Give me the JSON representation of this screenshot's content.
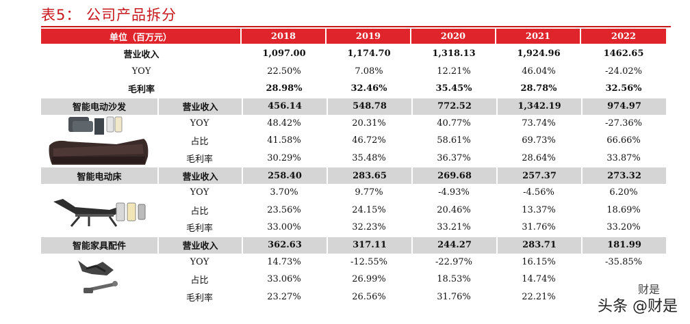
{
  "title": "表5： 公司产品拆分",
  "header": {
    "unit": "单位（百万元）",
    "years": [
      "2018",
      "2019",
      "2020",
      "2021",
      "2022"
    ]
  },
  "total": [
    {
      "label": "营业收入",
      "values": [
        "1,097.00",
        "1,174.70",
        "1,318.13",
        "1,924.96",
        "1462.65"
      ]
    },
    {
      "label": "YOY",
      "values": [
        "22.50%",
        "7.08%",
        "12.21%",
        "46.04%",
        "-24.02%"
      ]
    },
    {
      "label": "毛利率",
      "values": [
        "28.98%",
        "32.46%",
        "35.45%",
        "28.78%",
        "32.56%"
      ]
    }
  ],
  "segments": [
    {
      "name": "智能电动沙发",
      "revenue": {
        "label": "营业收入",
        "values": [
          "456.14",
          "548.78",
          "772.52",
          "1,342.19",
          "974.97"
        ]
      },
      "rows": [
        {
          "label": "YOY",
          "values": [
            "48.42%",
            "20.31%",
            "40.77%",
            "73.74%",
            "-27.36%"
          ]
        },
        {
          "label": "占比",
          "values": [
            "41.58%",
            "46.72%",
            "58.61%",
            "69.73%",
            "66.66%"
          ]
        },
        {
          "label": "毛利率",
          "values": [
            "30.29%",
            "35.48%",
            "36.37%",
            "28.64%",
            "33.87%"
          ]
        }
      ]
    },
    {
      "name": "智能电动床",
      "revenue": {
        "label": "营业收入",
        "values": [
          "258.40",
          "283.65",
          "269.68",
          "257.37",
          "273.32"
        ]
      },
      "rows": [
        {
          "label": "YOY",
          "values": [
            "3.70%",
            "9.77%",
            "-4.93%",
            "-4.56%",
            "6.20%"
          ]
        },
        {
          "label": "占比",
          "values": [
            "23.56%",
            "24.15%",
            "20.46%",
            "13.37%",
            "18.69%"
          ]
        },
        {
          "label": "毛利率",
          "values": [
            "33.00%",
            "32.23%",
            "33.21%",
            "31.76%",
            "33.20%"
          ]
        }
      ]
    },
    {
      "name": "智能家具配件",
      "revenue": {
        "label": "营业收入",
        "values": [
          "362.63",
          "317.11",
          "244.27",
          "283.71",
          "181.99"
        ]
      },
      "rows": [
        {
          "label": "YOY",
          "values": [
            "14.73%",
            "-12.55%",
            "-22.97%",
            "16.15%",
            "-35.85%"
          ]
        },
        {
          "label": "占比",
          "values": [
            "33.06%",
            "26.99%",
            "18.53%",
            "14.74%",
            ""
          ]
        },
        {
          "label": "毛利率",
          "values": [
            "23.27%",
            "26.56%",
            "31.76%",
            "22.21%",
            ""
          ]
        }
      ]
    }
  ],
  "watermark": {
    "small": "财是",
    "large": "头条 @财是"
  }
}
